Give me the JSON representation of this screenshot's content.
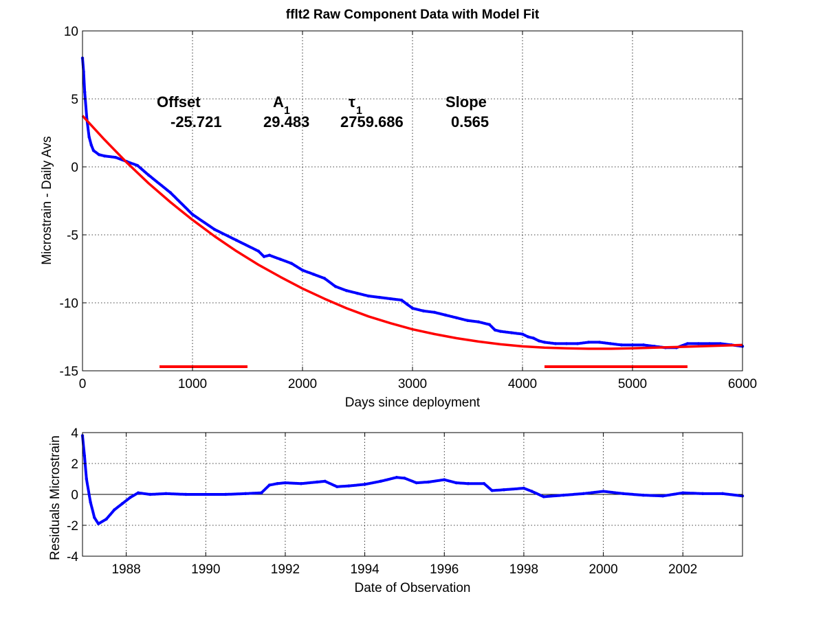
{
  "colors": {
    "data": "#0000ff",
    "fit": "#ff0000",
    "axis": "#000000",
    "grid": "#000000",
    "background": "#ffffff"
  },
  "chart_data": [
    {
      "type": "line",
      "title": "fflt2  Raw Component Data with Model Fit",
      "xlabel": "Days since deployment",
      "ylabel": "Microstrain - Daily Avs",
      "xlim": [
        0,
        6000
      ],
      "ylim": [
        -15,
        10
      ],
      "xticks": [
        0,
        1000,
        2000,
        3000,
        4000,
        5000,
        6000
      ],
      "yticks": [
        -15,
        -10,
        -5,
        0,
        5,
        10
      ],
      "xtick_labels": [
        "0",
        "1000",
        "2000",
        "3000",
        "4000",
        "5000",
        "6000"
      ],
      "ytick_labels": [
        "-15",
        "-10",
        "-5",
        "0",
        "5",
        "10"
      ],
      "grid": true,
      "annotations": {
        "offset_label": "Offset",
        "offset_value": "-25.721",
        "a_label": "A",
        "a_sub": "1",
        "a_value": "29.483",
        "tau_label": "τ",
        "tau_sub": "1",
        "tau_value": "2759.686",
        "slope_label": "Slope",
        "slope_value": "0.565"
      },
      "series": [
        {
          "style": "blue-dots",
          "x": [
            0,
            10,
            20,
            40,
            60,
            80,
            100,
            150,
            200,
            300,
            400,
            500,
            600,
            800,
            1000,
            1200,
            1400,
            1600,
            1650,
            1700,
            1800,
            1900,
            2000,
            2100,
            2200,
            2300,
            2400,
            2500,
            2600,
            2700,
            2800,
            2900,
            2950,
            3000,
            3100,
            3200,
            3300,
            3400,
            3500,
            3600,
            3700,
            3750,
            3800,
            3900,
            4000,
            4050,
            4100,
            4150,
            4200,
            4300,
            4400,
            4500,
            4600,
            4700,
            4800,
            4900,
            5000,
            5100,
            5200,
            5300,
            5400,
            5500,
            5600,
            5700,
            5800,
            5900,
            6000
          ],
          "y": [
            8,
            7,
            5.5,
            3.5,
            2.2,
            1.6,
            1.2,
            0.9,
            0.8,
            0.7,
            0.4,
            0.1,
            -0.6,
            -1.9,
            -3.5,
            -4.6,
            -5.4,
            -6.2,
            -6.6,
            -6.5,
            -6.8,
            -7.1,
            -7.6,
            -7.9,
            -8.2,
            -8.8,
            -9.1,
            -9.3,
            -9.5,
            -9.6,
            -9.7,
            -9.8,
            -10.1,
            -10.4,
            -10.6,
            -10.7,
            -10.9,
            -11.1,
            -11.3,
            -11.4,
            -11.6,
            -12.0,
            -12.1,
            -12.2,
            -12.3,
            -12.5,
            -12.6,
            -12.8,
            -12.9,
            -13.0,
            -13.0,
            -13.0,
            -12.9,
            -12.9,
            -13.0,
            -13.1,
            -13.1,
            -13.1,
            -13.2,
            -13.3,
            -13.3,
            -13.0,
            -13.0,
            -13.0,
            -13.0,
            -13.1,
            -13.2
          ]
        },
        {
          "style": "red-line",
          "x": [
            0,
            200,
            400,
            600,
            800,
            1000,
            1200,
            1400,
            1600,
            1800,
            2000,
            2200,
            2400,
            2600,
            2800,
            3000,
            3200,
            3400,
            3600,
            3800,
            4000,
            4200,
            4400,
            4600,
            4800,
            5000,
            5200,
            5400,
            5600,
            5800,
            6000
          ],
          "y": [
            3.76,
            2.0,
            0.34,
            -1.2,
            -2.6,
            -3.9,
            -5.1,
            -6.2,
            -7.2,
            -8.1,
            -8.95,
            -9.7,
            -10.4,
            -11.0,
            -11.5,
            -11.95,
            -12.3,
            -12.6,
            -12.85,
            -13.05,
            -13.2,
            -13.3,
            -13.35,
            -13.38,
            -13.38,
            -13.35,
            -13.3,
            -13.25,
            -13.2,
            -13.15,
            -13.1
          ]
        },
        {
          "style": "red-segment",
          "x": [
            700,
            1500
          ],
          "y": [
            -14.7,
            -14.7
          ]
        },
        {
          "style": "red-segment",
          "x": [
            4200,
            5500
          ],
          "y": [
            -14.7,
            -14.7
          ]
        }
      ]
    },
    {
      "type": "line",
      "title": "",
      "xlabel": "Date of Observation",
      "ylabel": "Residuals Microstrain",
      "xlim": [
        1986.9,
        2003.5
      ],
      "ylim": [
        -4,
        4
      ],
      "xticks": [
        1988,
        1990,
        1992,
        1994,
        1996,
        1998,
        2000,
        2002
      ],
      "yticks": [
        -4,
        -2,
        0,
        2,
        4
      ],
      "xtick_labels": [
        "1988",
        "1990",
        "1992",
        "1994",
        "1996",
        "1998",
        "2000",
        "2002"
      ],
      "ytick_labels": [
        "-4",
        "-2",
        "0",
        "2",
        "4"
      ],
      "grid": true,
      "zero_line": true,
      "series": [
        {
          "style": "blue-dots",
          "x": [
            1986.9,
            1986.95,
            1987.0,
            1987.1,
            1987.2,
            1987.3,
            1987.5,
            1987.7,
            1987.9,
            1988.1,
            1988.3,
            1988.6,
            1989.0,
            1989.5,
            1990.0,
            1990.5,
            1991.0,
            1991.4,
            1991.6,
            1991.8,
            1992.0,
            1992.4,
            1992.8,
            1993.0,
            1993.3,
            1993.6,
            1994.0,
            1994.4,
            1994.8,
            1995.0,
            1995.3,
            1995.6,
            1996.0,
            1996.3,
            1996.6,
            1997.0,
            1997.2,
            1997.5,
            1998.0,
            1998.2,
            1998.5,
            1999.0,
            1999.5,
            2000.0,
            2000.5,
            2001.0,
            2001.5,
            2002.0,
            2002.5,
            2003.0,
            2003.5
          ],
          "y": [
            3.8,
            2.5,
            1.0,
            -0.5,
            -1.5,
            -1.9,
            -1.6,
            -1.0,
            -0.6,
            -0.2,
            0.1,
            0.0,
            0.05,
            0.0,
            0.0,
            0.0,
            0.05,
            0.1,
            0.6,
            0.7,
            0.75,
            0.7,
            0.8,
            0.85,
            0.5,
            0.55,
            0.65,
            0.85,
            1.1,
            1.05,
            0.75,
            0.8,
            0.95,
            0.75,
            0.7,
            0.7,
            0.25,
            0.3,
            0.4,
            0.2,
            -0.15,
            -0.05,
            0.05,
            0.2,
            0.05,
            -0.05,
            -0.1,
            0.1,
            0.05,
            0.05,
            -0.1
          ]
        }
      ]
    }
  ]
}
